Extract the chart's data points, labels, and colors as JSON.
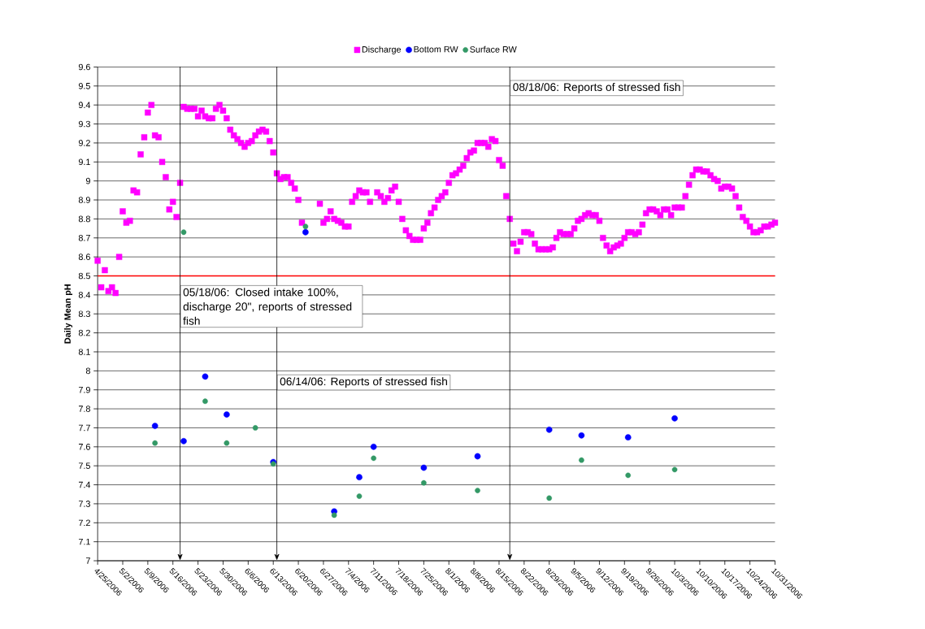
{
  "chart_data": {
    "type": "scatter",
    "ylabel": "Daily Mean pH",
    "xlim": [
      "2006-04-25",
      "2006-10-31"
    ],
    "xticks": [
      {
        "value": "2006-04-25",
        "label": "4/25/2006"
      },
      {
        "value": "2006-05-02",
        "label": "5/2/2006"
      },
      {
        "value": "2006-05-09",
        "label": "5/9/2006"
      },
      {
        "value": "2006-05-16",
        "label": "5/16/2006"
      },
      {
        "value": "2006-05-23",
        "label": "5/23/2006"
      },
      {
        "value": "2006-05-30",
        "label": "5/30/2006"
      },
      {
        "value": "2006-06-06",
        "label": "6/6/2006"
      },
      {
        "value": "2006-06-13",
        "label": "6/13/2006"
      },
      {
        "value": "2006-06-20",
        "label": "6/20/2006"
      },
      {
        "value": "2006-06-27",
        "label": "6/27/2006"
      },
      {
        "value": "2006-07-04",
        "label": "7/4/2006"
      },
      {
        "value": "2006-07-11",
        "label": "7/11/2006"
      },
      {
        "value": "2006-07-18",
        "label": "7/18/2006"
      },
      {
        "value": "2006-07-25",
        "label": "7/25/2006"
      },
      {
        "value": "2006-08-01",
        "label": "8/1/2006"
      },
      {
        "value": "2006-08-08",
        "label": "8/8/2006"
      },
      {
        "value": "2006-08-15",
        "label": "8/15/2006"
      },
      {
        "value": "2006-08-22",
        "label": "8/22/2006"
      },
      {
        "value": "2006-08-29",
        "label": "8/29/2006"
      },
      {
        "value": "2006-09-05",
        "label": "9/5/2006"
      },
      {
        "value": "2006-09-12",
        "label": "9/12/2006"
      },
      {
        "value": "2006-09-19",
        "label": "9/19/2006"
      },
      {
        "value": "2006-09-26",
        "label": "9/26/2006"
      },
      {
        "value": "2006-10-03",
        "label": "10/3/2006"
      },
      {
        "value": "2006-10-10",
        "label": "10/10/2006"
      },
      {
        "value": "2006-10-17",
        "label": "10/17/2006"
      },
      {
        "value": "2006-10-24",
        "label": "10/24/2006"
      },
      {
        "value": "2006-10-31",
        "label": "10/31/2006"
      }
    ],
    "ylim": [
      7,
      9.6
    ],
    "yticks": [
      7,
      7.1,
      7.2,
      7.3,
      7.4,
      7.5,
      7.6,
      7.7,
      7.8,
      7.9,
      8,
      8.1,
      8.2,
      8.3,
      8.4,
      8.5,
      8.6,
      8.7,
      8.8,
      8.9,
      9,
      9.1,
      9.2,
      9.3,
      9.4,
      9.5,
      9.6
    ],
    "grid": "y",
    "legend": "top",
    "ref_lines": [
      {
        "axis": "y",
        "value": 8.5,
        "color": "#ff0000"
      },
      {
        "axis": "x",
        "value": "2006-05-18",
        "color": "#000000",
        "label": "05/18/06: Closed intake 100%, discharge 20\", reports of stressed fish"
      },
      {
        "axis": "x",
        "value": "2006-06-14",
        "color": "#000000",
        "label": "06/14/06: Reports of stressed fish"
      },
      {
        "axis": "x",
        "value": "2006-08-18",
        "color": "#000000",
        "label": "08/18/06: Reports of stressed fish"
      }
    ],
    "series": [
      {
        "name": "Discharge",
        "color": "#ff00ff",
        "marker": "square",
        "x": [
          "2006-04-25",
          "2006-04-26",
          "2006-04-27",
          "2006-04-28",
          "2006-04-29",
          "2006-04-30",
          "2006-05-01",
          "2006-05-02",
          "2006-05-03",
          "2006-05-04",
          "2006-05-05",
          "2006-05-06",
          "2006-05-07",
          "2006-05-08",
          "2006-05-09",
          "2006-05-10",
          "2006-05-11",
          "2006-05-12",
          "2006-05-13",
          "2006-05-14",
          "2006-05-15",
          "2006-05-16",
          "2006-05-17",
          "2006-05-18",
          "2006-05-19",
          "2006-05-20",
          "2006-05-21",
          "2006-05-22",
          "2006-05-23",
          "2006-05-24",
          "2006-05-25",
          "2006-05-26",
          "2006-05-27",
          "2006-05-28",
          "2006-05-29",
          "2006-05-30",
          "2006-05-31",
          "2006-06-01",
          "2006-06-02",
          "2006-06-03",
          "2006-06-04",
          "2006-06-05",
          "2006-06-06",
          "2006-06-07",
          "2006-06-08",
          "2006-06-09",
          "2006-06-10",
          "2006-06-11",
          "2006-06-12",
          "2006-06-13",
          "2006-06-14",
          "2006-06-15",
          "2006-06-16",
          "2006-06-17",
          "2006-06-18",
          "2006-06-19",
          "2006-06-20",
          "2006-06-21",
          "2006-06-26",
          "2006-06-27",
          "2006-06-28",
          "2006-06-29",
          "2006-06-30",
          "2006-07-01",
          "2006-07-02",
          "2006-07-03",
          "2006-07-04",
          "2006-07-05",
          "2006-07-06",
          "2006-07-07",
          "2006-07-08",
          "2006-07-09",
          "2006-07-10",
          "2006-07-12",
          "2006-07-13",
          "2006-07-14",
          "2006-07-15",
          "2006-07-16",
          "2006-07-17",
          "2006-07-18",
          "2006-07-19",
          "2006-07-20",
          "2006-07-21",
          "2006-07-22",
          "2006-07-23",
          "2006-07-24",
          "2006-07-25",
          "2006-07-26",
          "2006-07-27",
          "2006-07-28",
          "2006-07-29",
          "2006-07-30",
          "2006-07-31",
          "2006-08-01",
          "2006-08-02",
          "2006-08-03",
          "2006-08-04",
          "2006-08-05",
          "2006-08-06",
          "2006-08-07",
          "2006-08-08",
          "2006-08-09",
          "2006-08-10",
          "2006-08-11",
          "2006-08-12",
          "2006-08-13",
          "2006-08-14",
          "2006-08-15",
          "2006-08-16",
          "2006-08-17",
          "2006-08-18",
          "2006-08-19",
          "2006-08-20",
          "2006-08-21",
          "2006-08-22",
          "2006-08-23",
          "2006-08-24",
          "2006-08-25",
          "2006-08-26",
          "2006-08-27",
          "2006-08-28",
          "2006-08-29",
          "2006-08-30",
          "2006-08-31",
          "2006-09-01",
          "2006-09-02",
          "2006-09-03",
          "2006-09-04",
          "2006-09-05",
          "2006-09-06",
          "2006-09-07",
          "2006-09-08",
          "2006-09-09",
          "2006-09-10",
          "2006-09-11",
          "2006-09-12",
          "2006-09-13",
          "2006-09-14",
          "2006-09-15",
          "2006-09-16",
          "2006-09-17",
          "2006-09-18",
          "2006-09-19",
          "2006-09-20",
          "2006-09-21",
          "2006-09-22",
          "2006-09-23",
          "2006-09-24",
          "2006-09-25",
          "2006-09-26",
          "2006-09-27",
          "2006-09-28",
          "2006-09-29",
          "2006-09-30",
          "2006-10-01",
          "2006-10-02",
          "2006-10-03",
          "2006-10-04",
          "2006-10-05",
          "2006-10-06",
          "2006-10-07",
          "2006-10-08",
          "2006-10-09",
          "2006-10-10",
          "2006-10-11",
          "2006-10-12",
          "2006-10-13",
          "2006-10-14",
          "2006-10-15",
          "2006-10-16",
          "2006-10-17",
          "2006-10-18",
          "2006-10-19",
          "2006-10-20",
          "2006-10-21",
          "2006-10-22",
          "2006-10-23",
          "2006-10-24",
          "2006-10-25",
          "2006-10-26",
          "2006-10-27",
          "2006-10-28",
          "2006-10-29",
          "2006-10-30",
          "2006-10-31"
        ],
        "values": [
          8.58,
          8.44,
          8.53,
          8.42,
          8.44,
          8.41,
          8.6,
          8.84,
          8.78,
          8.79,
          8.95,
          8.94,
          9.14,
          9.23,
          9.36,
          9.4,
          9.24,
          9.23,
          9.1,
          9.02,
          8.85,
          8.89,
          8.81,
          8.99,
          9.39,
          9.38,
          9.38,
          9.38,
          9.34,
          9.37,
          9.34,
          9.33,
          9.33,
          9.38,
          9.4,
          9.37,
          9.33,
          9.27,
          9.24,
          9.22,
          9.2,
          9.18,
          9.2,
          9.21,
          9.24,
          9.26,
          9.27,
          9.26,
          9.21,
          9.15,
          9.04,
          9.01,
          9.02,
          9.02,
          8.99,
          8.96,
          8.9,
          8.78,
          8.88,
          8.78,
          8.8,
          8.84,
          8.8,
          8.79,
          8.78,
          8.76,
          8.76,
          8.89,
          8.92,
          8.95,
          8.94,
          8.94,
          8.89,
          8.94,
          8.92,
          8.89,
          8.91,
          8.95,
          8.97,
          8.89,
          8.8,
          8.74,
          8.71,
          8.69,
          8.69,
          8.69,
          8.75,
          8.78,
          8.83,
          8.86,
          8.9,
          8.92,
          8.94,
          8.99,
          9.03,
          9.04,
          9.06,
          9.08,
          9.12,
          9.15,
          9.16,
          9.2,
          9.2,
          9.2,
          9.18,
          9.22,
          9.21,
          9.11,
          9.08,
          8.92,
          8.8,
          8.67,
          8.63,
          8.68,
          8.73,
          8.73,
          8.72,
          8.67,
          8.64,
          8.64,
          8.64,
          8.64,
          8.65,
          8.7,
          8.73,
          8.72,
          8.72,
          8.72,
          8.75,
          8.79,
          8.8,
          8.82,
          8.83,
          8.82,
          8.82,
          8.79,
          8.7,
          8.66,
          8.63,
          8.65,
          8.66,
          8.67,
          8.7,
          8.73,
          8.73,
          8.72,
          8.73,
          8.77,
          8.83,
          8.85,
          8.85,
          8.84,
          8.82,
          8.85,
          8.85,
          8.82,
          8.86,
          8.86,
          8.86,
          8.92,
          8.98,
          9.03,
          9.06,
          9.06,
          9.05,
          9.05,
          9.03,
          9.01,
          9.0,
          8.96,
          8.97,
          8.97,
          8.96,
          8.92,
          8.86,
          8.81,
          8.79,
          8.76,
          8.73,
          8.73,
          8.74,
          8.76,
          8.76,
          8.77,
          8.78
        ]
      },
      {
        "name": "Bottom RW",
        "color": "#0000ff",
        "marker": "circle",
        "x": [
          "2006-05-11",
          "2006-05-19",
          "2006-05-25",
          "2006-05-31",
          "2006-06-08",
          "2006-06-13",
          "2006-06-22",
          "2006-06-30",
          "2006-07-07",
          "2006-07-11",
          "2006-07-25",
          "2006-08-09",
          "2006-08-29",
          "2006-09-07",
          "2006-09-20",
          "2006-10-03"
        ],
        "values": [
          7.71,
          7.63,
          7.97,
          7.77,
          null,
          7.52,
          8.73,
          7.26,
          7.44,
          7.6,
          7.49,
          7.55,
          7.69,
          7.66,
          7.65,
          7.75
        ]
      },
      {
        "name": "Surface RW",
        "color": "#339966",
        "marker": "circle",
        "x": [
          "2006-05-11",
          "2006-05-19",
          "2006-05-25",
          "2006-05-31",
          "2006-06-08",
          "2006-06-13",
          "2006-06-22",
          "2006-06-30",
          "2006-07-07",
          "2006-07-11",
          "2006-07-25",
          "2006-08-09",
          "2006-08-29",
          "2006-09-07",
          "2006-09-20",
          "2006-10-03"
        ],
        "values": [
          7.62,
          8.73,
          7.84,
          7.62,
          7.7,
          7.51,
          8.76,
          7.24,
          7.34,
          7.54,
          7.41,
          7.37,
          7.33,
          7.53,
          7.45,
          7.48
        ]
      }
    ]
  }
}
